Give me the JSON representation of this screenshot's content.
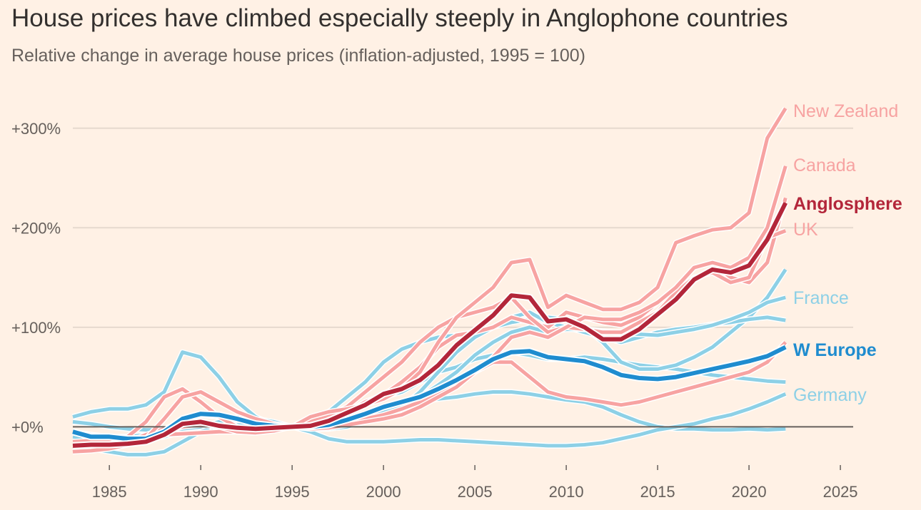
{
  "chart_data": {
    "type": "line",
    "title": "House prices have climbed especially steeply in Anglophone countries",
    "subtitle": "Relative change in average house prices (inflation-adjusted, 1995 = 100)",
    "xlabel": "",
    "ylabel": "",
    "xlim": [
      1983,
      2025.7
    ],
    "ylim": [
      -37,
      350
    ],
    "x_ticks": [
      1985,
      1990,
      1995,
      2000,
      2005,
      2010,
      2015,
      2020,
      2025
    ],
    "x_tick_labels": [
      "1985",
      "1990",
      "1995",
      "2000",
      "2005",
      "2010",
      "2015",
      "2020",
      "2025"
    ],
    "y_ticks": [
      0,
      100,
      200,
      300
    ],
    "y_tick_labels": [
      "+0%",
      "+100%",
      "+200%",
      "+300%"
    ],
    "grid": true,
    "colors": {
      "anglo_light": "#f7a3a2",
      "anglo": "#b3263a",
      "europe_light": "#8dd0e6",
      "europe": "#1f8ccf",
      "baseline": "#66605c",
      "grid": "#e6d9ce"
    },
    "x": [
      1983,
      1984,
      1985,
      1986,
      1987,
      1988,
      1989,
      1990,
      1991,
      1992,
      1993,
      1994,
      1995,
      1996,
      1997,
      1998,
      1999,
      2000,
      2001,
      2002,
      2003,
      2004,
      2005,
      2006,
      2007,
      2008,
      2009,
      2010,
      2011,
      2012,
      2013,
      2014,
      2015,
      2016,
      2017,
      2018,
      2019,
      2020,
      2021,
      2022
    ],
    "series": [
      {
        "name": "",
        "group": "europe_light",
        "values": [
          10,
          15,
          18,
          18,
          22,
          35,
          75,
          70,
          50,
          25,
          10,
          2,
          0,
          2,
          8,
          15,
          25,
          30,
          35,
          45,
          55,
          60,
          68,
          72,
          75,
          72,
          68,
          68,
          70,
          68,
          65,
          62,
          60,
          58,
          55,
          52,
          50,
          48,
          46,
          45
        ]
      },
      {
        "name": "",
        "group": "europe_light",
        "values": [
          -10,
          -12,
          -14,
          -14,
          -12,
          -10,
          -5,
          -2,
          0,
          2,
          2,
          1,
          0,
          5,
          15,
          30,
          45,
          65,
          78,
          85,
          90,
          92,
          95,
          100,
          105,
          108,
          110,
          108,
          100,
          85,
          65,
          58,
          58,
          62,
          70,
          80,
          95,
          110,
          130,
          158
        ]
      },
      {
        "name": "",
        "group": "europe_light",
        "values": [
          -5,
          -8,
          -12,
          -14,
          -10,
          -5,
          5,
          12,
          10,
          5,
          2,
          0,
          0,
          -2,
          -2,
          0,
          5,
          12,
          20,
          35,
          55,
          75,
          90,
          100,
          110,
          115,
          105,
          100,
          95,
          90,
          85,
          90,
          95,
          98,
          100,
          103,
          105,
          108,
          110,
          107
        ]
      },
      {
        "name": "",
        "group": "europe_light",
        "values": [
          -20,
          -22,
          -25,
          -28,
          -28,
          -25,
          -15,
          -5,
          5,
          10,
          8,
          3,
          0,
          0,
          2,
          5,
          10,
          15,
          20,
          25,
          28,
          30,
          33,
          35,
          35,
          33,
          30,
          27,
          25,
          20,
          12,
          5,
          0,
          -2,
          -2,
          -3,
          -3,
          -2,
          -3,
          -2
        ]
      },
      {
        "name": "France",
        "group": "europe_light",
        "values": [
          -5,
          -8,
          -10,
          -10,
          -8,
          -5,
          0,
          3,
          3,
          2,
          0,
          -1,
          0,
          -1,
          0,
          2,
          8,
          15,
          22,
          30,
          42,
          55,
          72,
          85,
          95,
          100,
          95,
          98,
          98,
          96,
          94,
          93,
          92,
          95,
          98,
          102,
          108,
          115,
          125,
          130
        ]
      },
      {
        "name": "Germany",
        "group": "europe_light",
        "values": [
          5,
          3,
          0,
          -2,
          -3,
          -3,
          -2,
          0,
          5,
          8,
          8,
          5,
          0,
          -5,
          -12,
          -15,
          -15,
          -15,
          -14,
          -13,
          -13,
          -14,
          -15,
          -16,
          -17,
          -18,
          -19,
          -19,
          -18,
          -16,
          -12,
          -8,
          -3,
          0,
          3,
          8,
          12,
          18,
          25,
          33
        ]
      },
      {
        "name": "",
        "group": "anglo_light",
        "values": [
          -15,
          -14,
          -14,
          -12,
          -10,
          -8,
          -7,
          -6,
          -5,
          -5,
          -4,
          -2,
          0,
          1,
          2,
          5,
          8,
          12,
          18,
          25,
          33,
          42,
          55,
          65,
          65,
          50,
          35,
          30,
          28,
          25,
          22,
          25,
          30,
          35,
          40,
          45,
          50,
          55,
          65,
          85
        ]
      },
      {
        "name": "",
        "group": "anglo_light",
        "values": [
          -20,
          -18,
          -18,
          -15,
          -10,
          -5,
          0,
          2,
          0,
          -2,
          -3,
          -2,
          0,
          3,
          8,
          14,
          25,
          32,
          45,
          60,
          80,
          92,
          95,
          100,
          110,
          105,
          100,
          115,
          110,
          105,
          102,
          110,
          125,
          140,
          160,
          165,
          150,
          145,
          165,
          230
        ]
      },
      {
        "name": "UK",
        "group": "anglo_light",
        "values": [
          -25,
          -22,
          -18,
          -10,
          5,
          30,
          38,
          25,
          10,
          0,
          -5,
          -3,
          0,
          5,
          12,
          20,
          35,
          50,
          65,
          85,
          100,
          110,
          115,
          120,
          130,
          110,
          95,
          100,
          98,
          95,
          95,
          105,
          115,
          135,
          150,
          155,
          145,
          150,
          190,
          197
        ]
      },
      {
        "name": "Canada",
        "group": "anglo_light",
        "values": [
          -22,
          -20,
          -18,
          -15,
          -8,
          -2,
          5,
          5,
          0,
          -5,
          -6,
          -4,
          0,
          -2,
          -1,
          2,
          5,
          8,
          12,
          20,
          30,
          40,
          55,
          70,
          90,
          95,
          90,
          100,
          110,
          108,
          108,
          115,
          125,
          140,
          160,
          165,
          160,
          170,
          200,
          262
        ]
      },
      {
        "name": "New Zealand",
        "group": "anglo_light",
        "values": [
          -25,
          -24,
          -22,
          -18,
          -12,
          8,
          30,
          35,
          25,
          15,
          8,
          3,
          0,
          10,
          15,
          18,
          22,
          28,
          38,
          55,
          85,
          110,
          125,
          140,
          165,
          168,
          120,
          132,
          125,
          118,
          118,
          125,
          140,
          185,
          192,
          198,
          200,
          215,
          290,
          320
        ]
      },
      {
        "name": "W Europe",
        "group": "europe",
        "values": [
          -5,
          -10,
          -10,
          -12,
          -12,
          -5,
          8,
          13,
          12,
          8,
          3,
          1,
          0,
          0,
          2,
          7,
          13,
          20,
          25,
          30,
          38,
          47,
          57,
          68,
          75,
          76,
          70,
          68,
          66,
          60,
          52,
          49,
          48,
          50,
          54,
          58,
          62,
          66,
          71,
          80
        ]
      },
      {
        "name": "Anglosphere",
        "group": "anglo",
        "values": [
          -19,
          -18,
          -18,
          -17,
          -15,
          -8,
          3,
          5,
          1,
          -1,
          -2,
          -1,
          0,
          1,
          6,
          14,
          22,
          33,
          38,
          47,
          62,
          82,
          97,
          112,
          132,
          130,
          106,
          108,
          100,
          88,
          88,
          98,
          113,
          128,
          148,
          158,
          155,
          162,
          188,
          225
        ]
      }
    ]
  }
}
